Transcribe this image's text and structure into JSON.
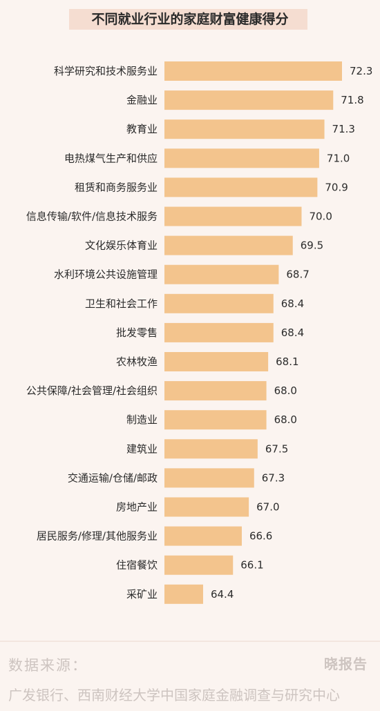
{
  "chart_data": {
    "type": "bar",
    "orientation": "horizontal",
    "title": "不同就业行业的家庭财富健康得分",
    "categories": [
      "科学研究和技术服务业",
      "金融业",
      "教育业",
      "电热煤气生产和供应",
      "租赁和商务服务业",
      "信息传输/软件/信息技术服务",
      "文化娱乐体育业",
      "水利环境公共设施管理",
      "卫生和社会工作",
      "批发零售",
      "农林牧渔",
      "公共保障/社会管理/社会组织",
      "制造业",
      "建筑业",
      "交通运输/仓储/邮政",
      "房地产业",
      "居民服务/修理/其他服务业",
      "住宿餐饮",
      "采矿业"
    ],
    "values": [
      72.3,
      71.8,
      71.3,
      71.0,
      70.9,
      70.0,
      69.5,
      68.7,
      68.4,
      68.4,
      68.1,
      68.0,
      68.0,
      67.5,
      67.3,
      67.0,
      66.6,
      66.1,
      64.4
    ],
    "value_labels": [
      "72.3",
      "71.8",
      "71.3",
      "71.0",
      "70.9",
      "70.0",
      "69.5",
      "68.7",
      "68.4",
      "68.4",
      "68.1",
      "68.0",
      "68.0",
      "67.5",
      "67.3",
      "67.0",
      "66.6",
      "66.1",
      "64.4"
    ],
    "xlim": [
      62.2,
      72.3
    ],
    "bar_color": "#f3c48d",
    "grid": false,
    "legend": "none"
  },
  "footer": {
    "source_label": "数据来源：",
    "brand": "晓报告",
    "source_text": "广发银行、西南财经大学中国家庭金融调查与研究中心"
  }
}
